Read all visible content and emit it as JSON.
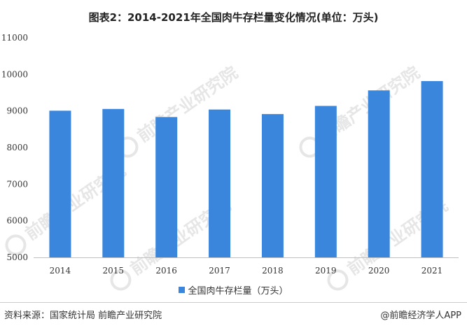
{
  "header": {
    "title": "图表2：2014-2021年全国肉牛存栏量变化情况(单位：万头)"
  },
  "watermark": {
    "text": "前瞻产业研究院"
  },
  "chart_data": {
    "type": "bar",
    "title": "图表2：2014-2021年全国肉牛存栏量变化情况(单位：万头)",
    "categories": [
      "2014",
      "2015",
      "2016",
      "2017",
      "2018",
      "2019",
      "2020",
      "2021"
    ],
    "series": [
      {
        "name": "全国肉牛存栏量（万头）",
        "values": [
          9007,
          9055,
          8834,
          9039,
          8915,
          9138,
          9562,
          9817
        ],
        "color": "#3a86dd"
      }
    ],
    "ylim": [
      5000,
      11000
    ],
    "yticks": [
      "5000",
      "6000",
      "7000",
      "8000",
      "9000",
      "10000",
      "11000"
    ],
    "grid": false,
    "legend_position": "bottom"
  },
  "legend": {
    "label": "全国肉牛存栏量（万头）"
  },
  "footer": {
    "source": "资料来源：国家统计局 前瞻产业研究院",
    "brand": "@前瞻经济学人APP"
  }
}
